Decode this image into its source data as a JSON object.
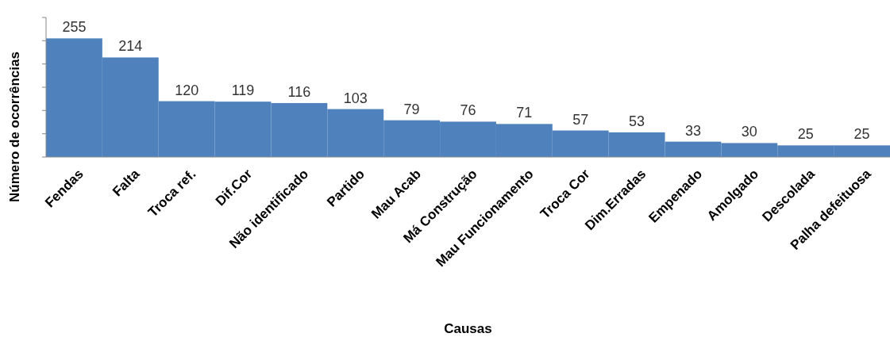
{
  "chart_data": {
    "type": "bar",
    "xlabel": "Causas",
    "ylabel": "Número de ocorrências",
    "categories": [
      "Fendas",
      "Falta",
      "Troca ref.",
      "Dif.Cor",
      "Não identificado",
      "Partido",
      "Mau Acab",
      "Má Construção",
      "Mau Funcionamento",
      "Troca Cor",
      "Dim.Erradas",
      "Empenado",
      "Amolgado",
      "Descolada",
      "Palha defeituosa"
    ],
    "values": [
      255,
      214,
      120,
      119,
      116,
      103,
      79,
      76,
      71,
      57,
      53,
      33,
      30,
      25,
      25
    ],
    "color": "#4f81bd",
    "data_labels": true,
    "ylim": [
      0,
      300
    ],
    "yticks": [
      {
        "value": 0,
        "label": null
      },
      {
        "value": 50,
        "label": null
      },
      {
        "value": 100,
        "label": null
      },
      {
        "value": 150,
        "label": null
      },
      {
        "value": 200,
        "label": null
      },
      {
        "value": 250,
        "label": null
      },
      {
        "value": 300,
        "label": null
      }
    ],
    "tick_labels": "x",
    "grid": false
  }
}
